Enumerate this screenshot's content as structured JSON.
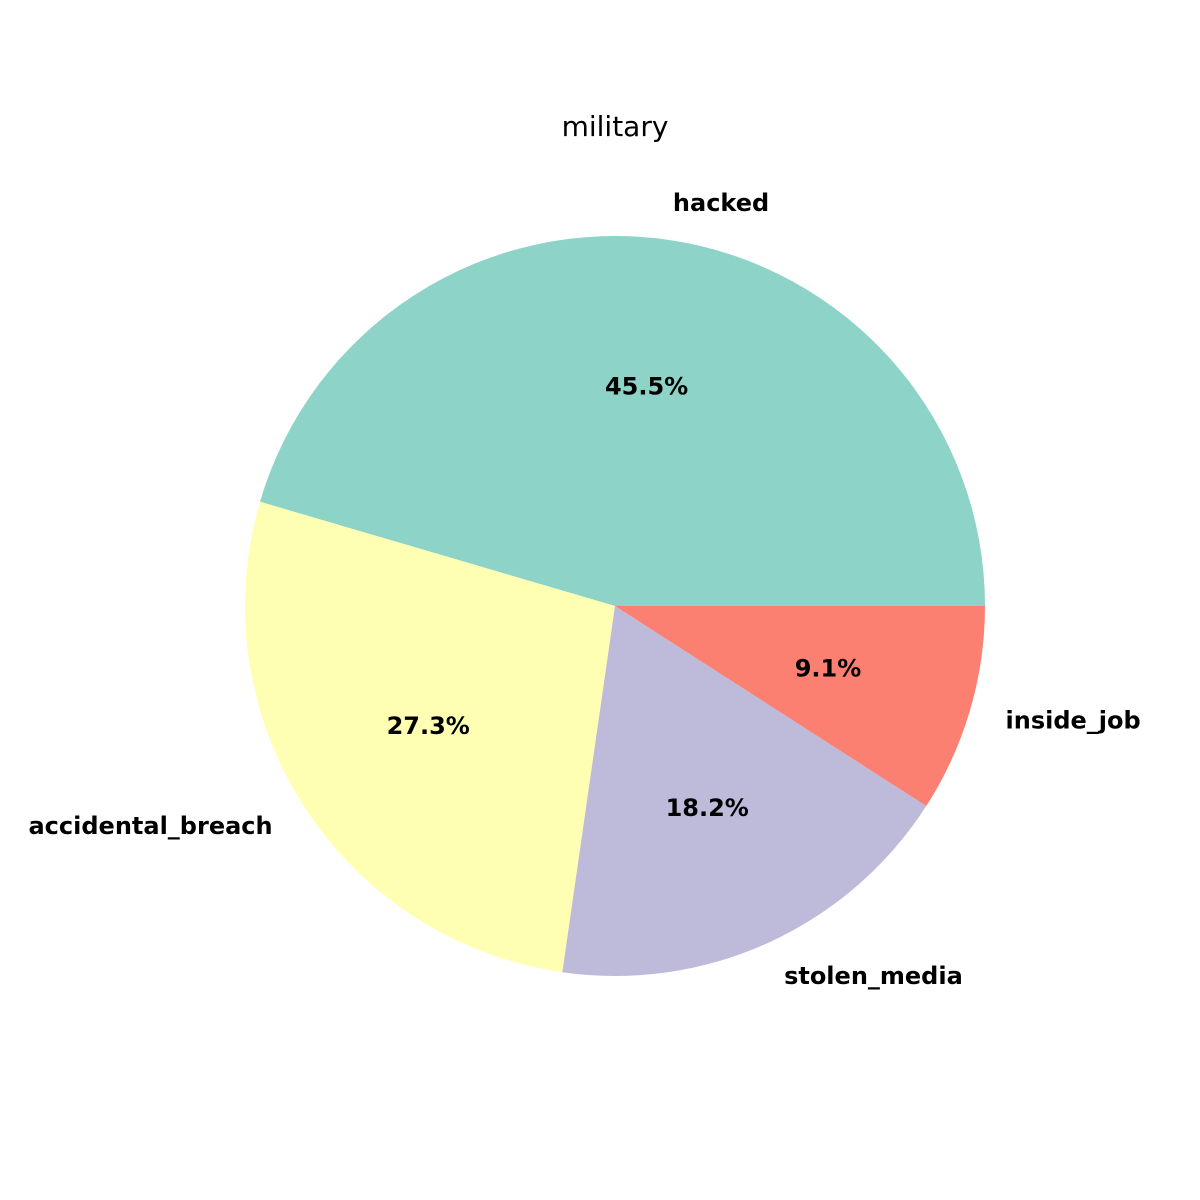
{
  "chart_data": {
    "type": "pie",
    "title": "military",
    "categories": [
      "hacked",
      "accidental_breach",
      "stolen_media",
      "inside_job"
    ],
    "values": [
      45.5,
      27.3,
      18.2,
      9.1
    ],
    "value_labels": [
      "45.5%",
      "27.3%",
      "18.2%",
      "9.1%"
    ],
    "colors": [
      "#8dd3c7",
      "#ffffb3",
      "#bebada",
      "#fb8072"
    ],
    "start_angle_deg": 0,
    "direction": "counterclockwise",
    "legend": "none"
  }
}
